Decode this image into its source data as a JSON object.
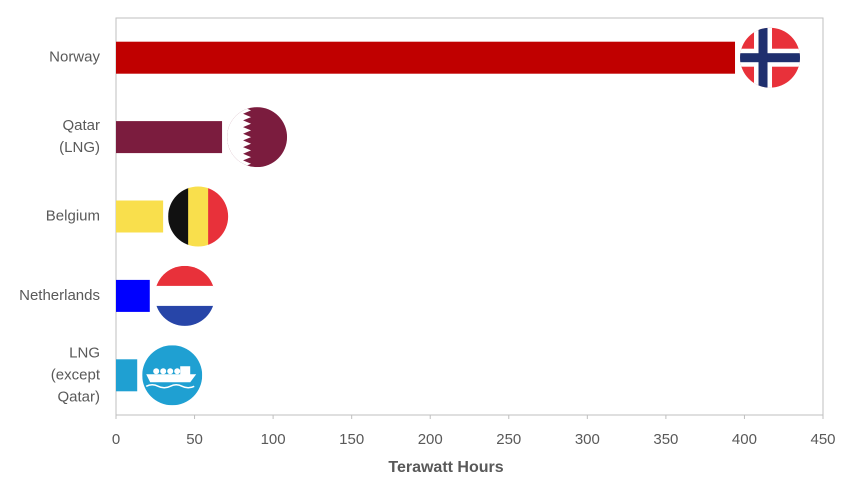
{
  "chart_data": {
    "type": "bar",
    "orientation": "horizontal",
    "x_label": "Terawatt Hours",
    "categories": [
      "Norway",
      "Qatar\n(LNG)",
      "Belgium",
      "Netherlands",
      "LNG\n(except\nQatar)"
    ],
    "values": [
      394,
      67.5,
      30,
      21.5,
      13.5
    ],
    "colors": [
      "#c00000",
      "#7b1c3e",
      "#f9df4c",
      "#0000ff",
      "#1fa0d2"
    ],
    "xlim": [
      0,
      450
    ],
    "xticks": [
      0,
      50,
      100,
      150,
      200,
      250,
      300,
      350,
      400,
      450
    ],
    "grid": false
  }
}
